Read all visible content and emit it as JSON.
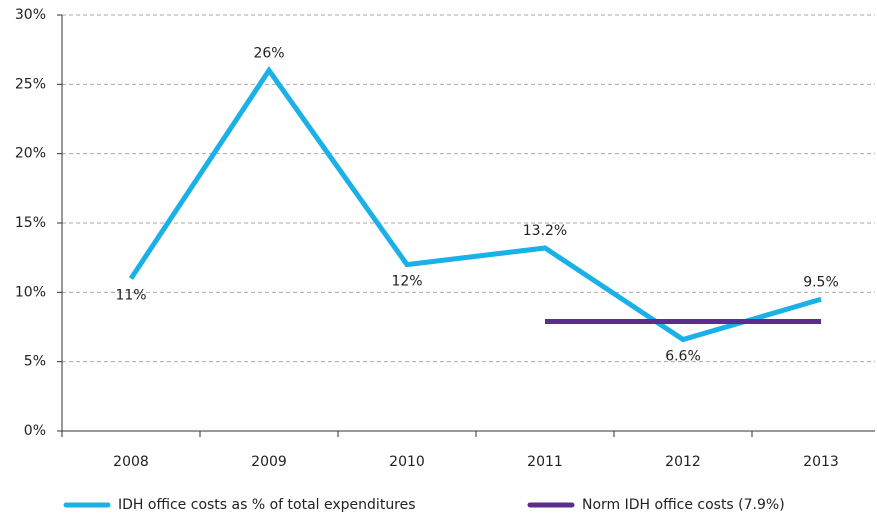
{
  "chart_data": {
    "type": "line",
    "categories": [
      "2008",
      "2009",
      "2010",
      "2011",
      "2012",
      "2013"
    ],
    "series": [
      {
        "name": "IDH office costs as % of total expenditures",
        "color": "#1ab0e8",
        "values": [
          11,
          26,
          12,
          13.2,
          6.6,
          9.5
        ],
        "value_labels": [
          "11%",
          "26%",
          "12%",
          "13.2%",
          "6.6%",
          "9.5%"
        ]
      },
      {
        "name": "Norm IDH office costs (7.9%)",
        "color": "#5b2d8e",
        "values": [
          null,
          null,
          null,
          7.9,
          7.9,
          7.9
        ]
      }
    ],
    "ylim": [
      0,
      30
    ],
    "yticks": [
      {
        "value": 0,
        "label": "0%"
      },
      {
        "value": 5,
        "label": "5%"
      },
      {
        "value": 10,
        "label": "10%"
      },
      {
        "value": 15,
        "label": "15%"
      },
      {
        "value": 20,
        "label": "20%"
      },
      {
        "value": 25,
        "label": "25%"
      },
      {
        "value": 30,
        "label": "30%"
      }
    ],
    "grid": true,
    "legend": "bottom"
  }
}
